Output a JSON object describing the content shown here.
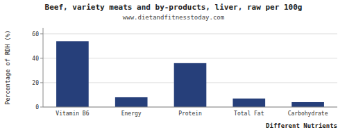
{
  "chart_data": {
    "type": "bar",
    "title": "Beef, variety meats and by-products, liver, raw per 100g",
    "subtitle": "www.dietandfitnesstoday.com",
    "xlabel": "Different Nutrients",
    "ylabel": "Percentage of RDH (%)",
    "categories": [
      "Vitamin B6",
      "Energy",
      "Protein",
      "Total Fat",
      "Carbohydrate"
    ],
    "values": [
      54,
      8,
      36,
      7,
      4
    ],
    "color": "#263f7a",
    "ylim": [
      0,
      65
    ],
    "yticks": [
      0,
      20,
      40,
      60
    ],
    "grid": true
  }
}
